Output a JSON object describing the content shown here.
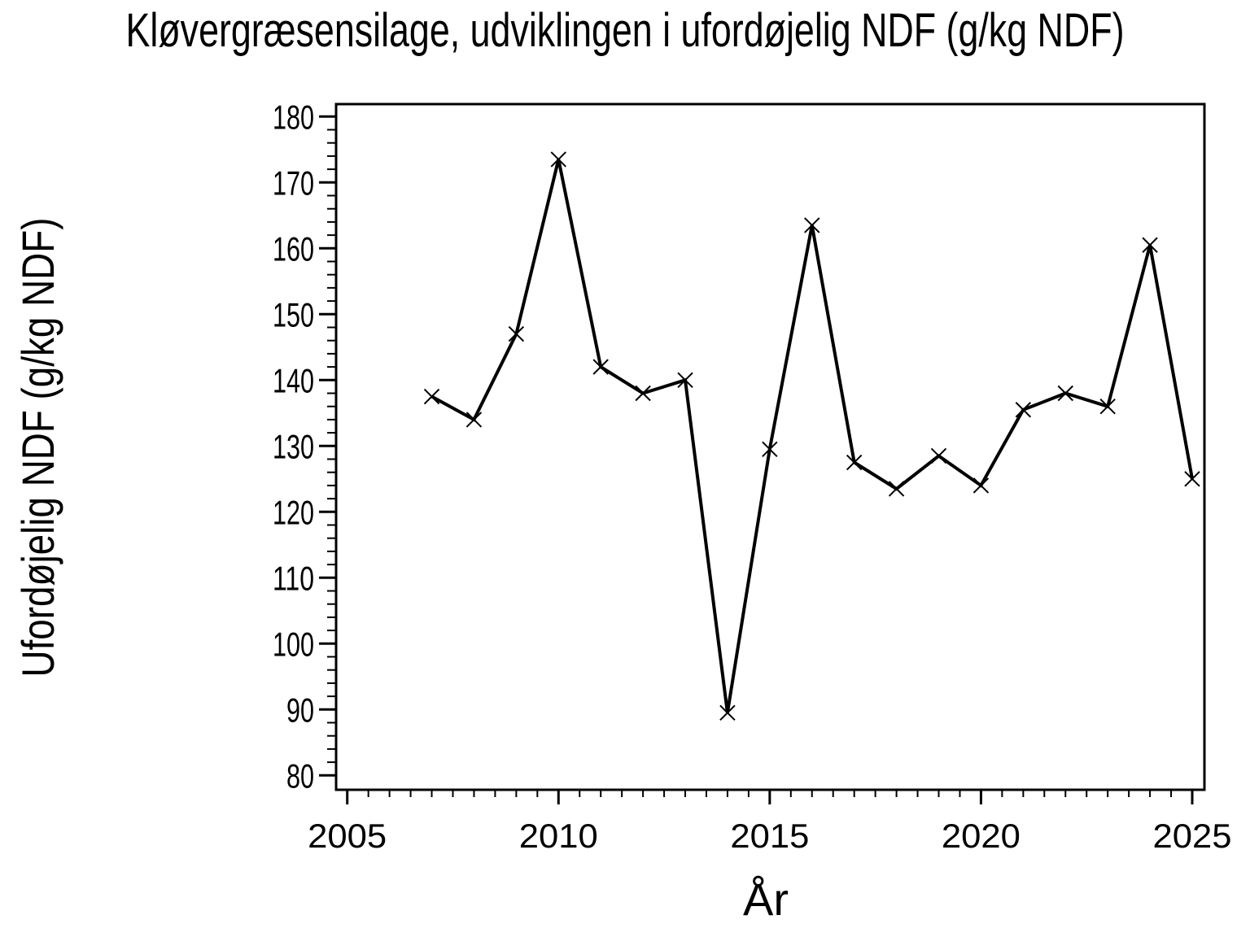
{
  "chart_data": {
    "type": "line",
    "title": "Kløvergræsensilage, udviklingen i ufordøjelig NDF (g/kg NDF)",
    "xlabel": "År",
    "ylabel": "Ufordøjelig NDF (g/kg NDF)",
    "x": [
      2007,
      2008,
      2009,
      2010,
      2011,
      2012,
      2013,
      2014,
      2015,
      2016,
      2017,
      2018,
      2019,
      2020,
      2021,
      2022,
      2023,
      2024,
      2025
    ],
    "values": [
      137.5,
      134,
      147,
      173.5,
      142,
      138,
      140,
      89.5,
      129.5,
      163.5,
      127.5,
      123.5,
      128.5,
      124,
      135.5,
      138,
      136,
      160.5,
      125
    ],
    "series_name": "Ufordøjelig NDF",
    "marker": "x",
    "x_major_ticks": [
      2005,
      2010,
      2015,
      2020,
      2025
    ],
    "x_minor_step": 0.5,
    "y_major_ticks": [
      80,
      90,
      100,
      110,
      120,
      130,
      140,
      150,
      160,
      170,
      180
    ],
    "y_minor_step": 2,
    "xlim": [
      2005,
      2025
    ],
    "ylim": [
      80,
      180
    ],
    "grid": false,
    "legend": "none",
    "line_color": "#000000",
    "text_color": "#000000",
    "background_color": "#ffffff"
  }
}
